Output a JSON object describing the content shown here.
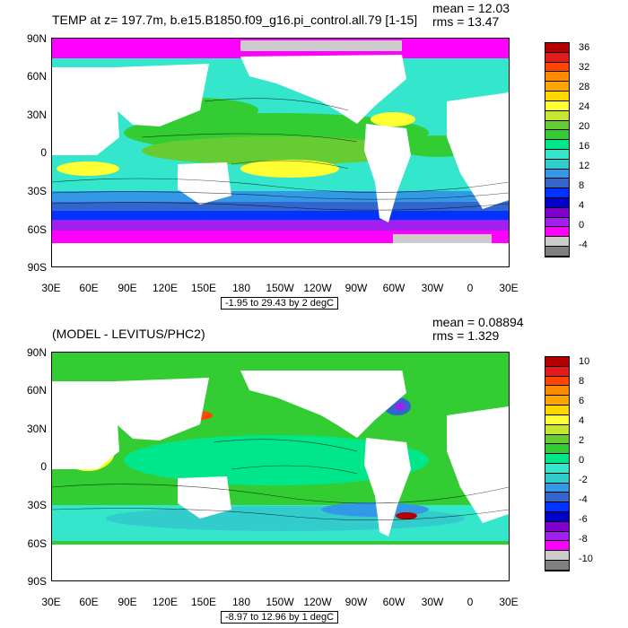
{
  "panel1": {
    "title": "TEMP at z= 197.7m, b.e15.B1850.f09_g16.pi_control.all.79 [1-15]",
    "mean": "mean = 12.03",
    "rms": "rms = 13.47",
    "range": "-1.95 to 29.43 by 2 degC",
    "colorbar": {
      "labels": [
        "36",
        "32",
        "28",
        "24",
        "20",
        "16",
        "12",
        "8",
        "4",
        "0",
        "-4"
      ],
      "colors": [
        "#b30000",
        "#e41a1c",
        "#ff4500",
        "#ff8c00",
        "#ffa500",
        "#ffd700",
        "#ffff33",
        "#c6e633",
        "#66cc33",
        "#33cc33",
        "#00e68a",
        "#33e6cc",
        "#33cccc",
        "#3399e6",
        "#3366cc",
        "#0033ff",
        "#0000cc",
        "#8000cc",
        "#a020f0",
        "#ff00ff",
        "#cccccc",
        "#808080"
      ]
    }
  },
  "panel2": {
    "title": "(MODEL - LEVITUS/PHC2)",
    "mean": "mean = 0.08894",
    "rms": "rms = 1.329",
    "range": "-8.97 to 12.96 by 1 degC",
    "colorbar": {
      "labels": [
        "10",
        "8",
        "6",
        "4",
        "2",
        "0",
        "-2",
        "-4",
        "-6",
        "-8",
        "-10"
      ],
      "colors": [
        "#b30000",
        "#e41a1c",
        "#ff4500",
        "#ff8c00",
        "#ffa500",
        "#ffd700",
        "#ffff33",
        "#c6e633",
        "#66cc33",
        "#33cc33",
        "#00e68a",
        "#33e6cc",
        "#33cccc",
        "#3399e6",
        "#3366cc",
        "#0033ff",
        "#0000cc",
        "#8000cc",
        "#a020f0",
        "#ff00ff",
        "#cccccc",
        "#808080"
      ]
    }
  },
  "axes": {
    "lat_labels": [
      "90N",
      "60N",
      "30N",
      "0",
      "30S",
      "60S",
      "90S"
    ],
    "lon_labels": [
      "30E",
      "60E",
      "90E",
      "120E",
      "150E",
      "180",
      "150W",
      "120W",
      "90W",
      "60W",
      "30W",
      "0",
      "30E"
    ]
  }
}
